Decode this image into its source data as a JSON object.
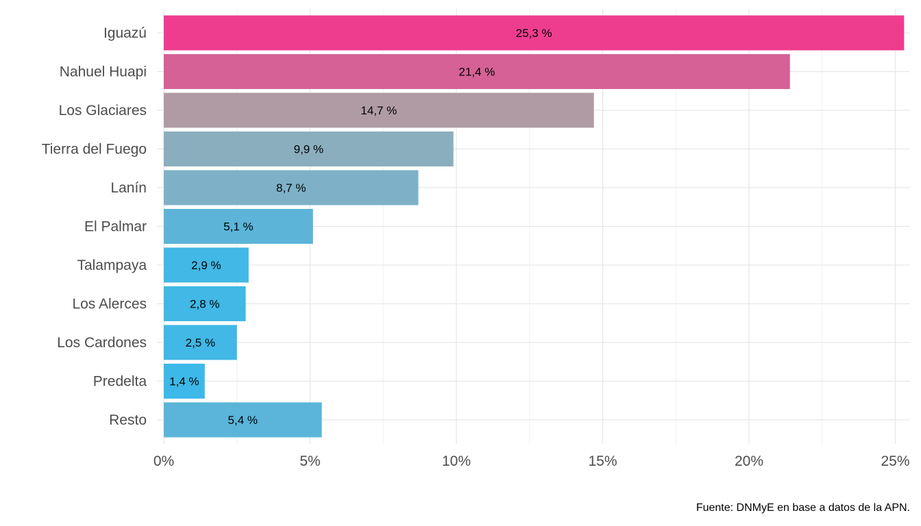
{
  "chart_data": {
    "type": "bar",
    "orientation": "horizontal",
    "categories": [
      "Iguazú",
      "Nahuel Huapi",
      "Los Glaciares",
      "Tierra del Fuego",
      "Lanín",
      "El Palmar",
      "Talampaya",
      "Los Alerces",
      "Los Cardones",
      "Predelta",
      "Resto"
    ],
    "values": [
      25.3,
      21.4,
      14.7,
      9.9,
      8.7,
      5.1,
      2.9,
      2.8,
      2.5,
      1.4,
      5.4
    ],
    "value_labels": [
      "25,3 %",
      "21,4 %",
      "14,7 %",
      "9,9 %",
      "8,7 %",
      "5,1 %",
      "2,9 %",
      "2,8 %",
      "2,5 %",
      "1,4 %",
      "5,4 %"
    ],
    "colors": [
      "#EE3D8F",
      "#D56196",
      "#B09BA4",
      "#8BAEBE",
      "#7EB1C7",
      "#5CB5D8",
      "#41B8E5",
      "#41B8E5",
      "#41B8E5",
      "#3CB9E9",
      "#5BB4D9"
    ],
    "xlim": [
      0,
      25.5
    ],
    "x_ticks": [
      0,
      5,
      10,
      15,
      20,
      25
    ],
    "x_tick_labels": [
      "0%",
      "5%",
      "10%",
      "15%",
      "20%",
      "25%"
    ],
    "grid": true,
    "caption": "Fuente: DNMyE en base a datos de la APN."
  }
}
